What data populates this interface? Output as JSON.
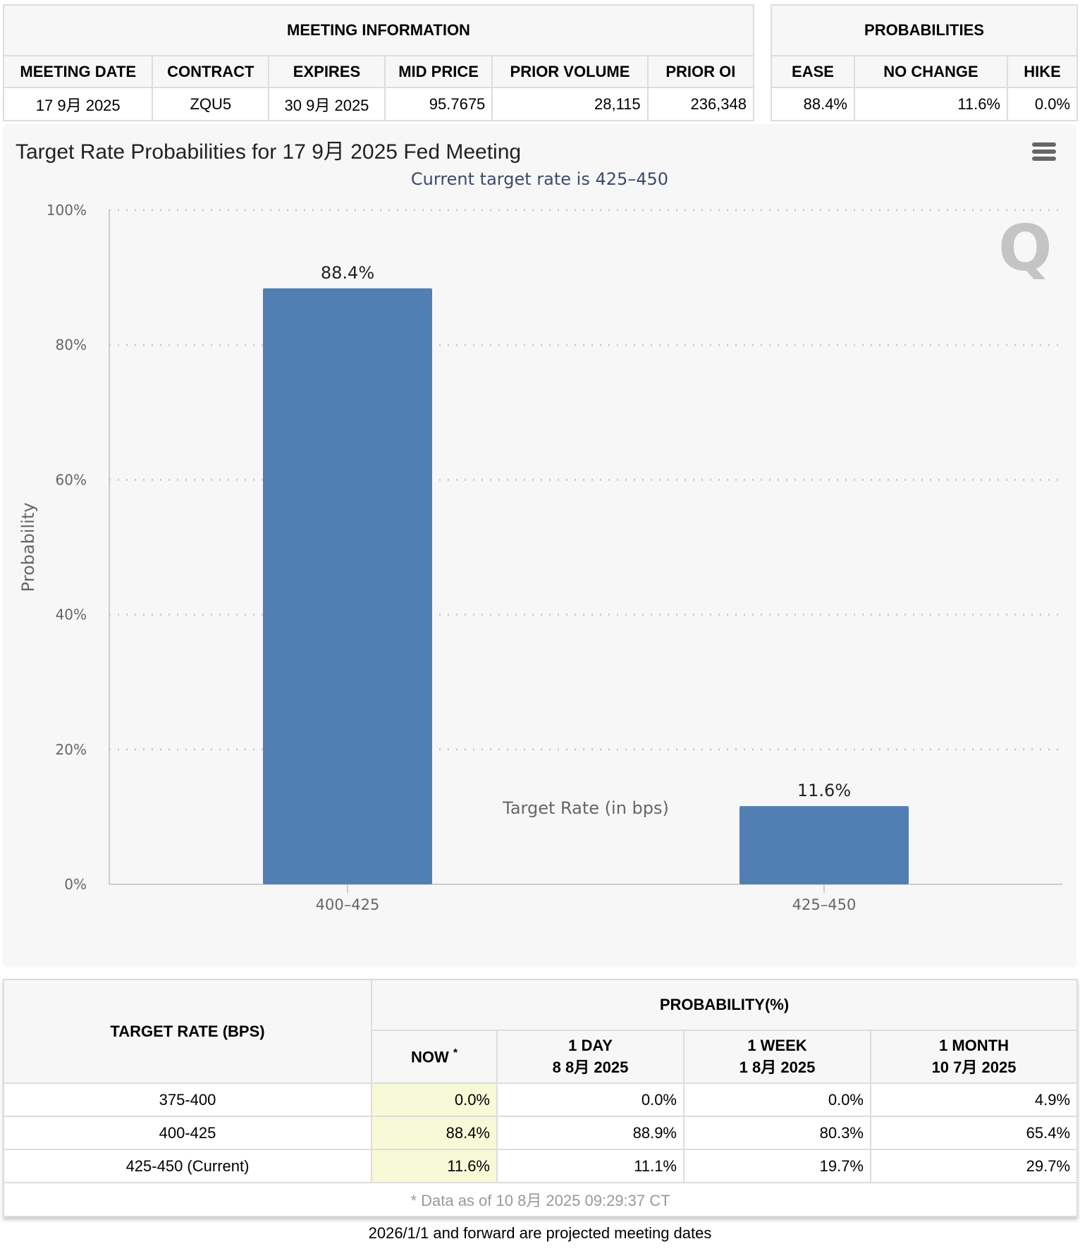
{
  "meeting_info": {
    "title": "MEETING INFORMATION",
    "headers": [
      "MEETING DATE",
      "CONTRACT",
      "EXPIRES",
      "MID PRICE",
      "PRIOR VOLUME",
      "PRIOR OI"
    ],
    "values": [
      "17 9月 2025",
      "ZQU5",
      "30 9月 2025",
      "95.7675",
      "28,115",
      "236,348"
    ]
  },
  "probabilities": {
    "title": "PROBABILITIES",
    "headers": [
      "EASE",
      "NO CHANGE",
      "HIKE"
    ],
    "values": [
      "88.4%",
      "11.6%",
      "0.0%"
    ]
  },
  "chart": {
    "title": "Target Rate Probabilities for 17 9月 2025 Fed Meeting",
    "menu_icon": "hamburger-menu-icon",
    "watermark": "Q"
  },
  "chart_data": {
    "type": "bar",
    "title": "Target Rate Probabilities for 17 9月 2025 Fed Meeting",
    "subtitle": "Current target rate is 425–450",
    "categories": [
      "400–425",
      "425–450"
    ],
    "values": [
      88.4,
      11.6
    ],
    "data_labels": [
      "88.4%",
      "11.6%"
    ],
    "xlabel": "Target Rate (in bps)",
    "ylabel": "Probability",
    "ylim": [
      0,
      100
    ],
    "yticks": [
      "0%",
      "20%",
      "40%",
      "60%",
      "80%",
      "100%"
    ],
    "grid": true,
    "bar_color": "#527fb3"
  },
  "table": {
    "rate_header": "TARGET RATE (BPS)",
    "prob_header": "PROBABILITY(%)",
    "cols": [
      {
        "l1": "NOW",
        "l2": ""
      },
      {
        "l1": "1 DAY",
        "l2": "8 8月 2025"
      },
      {
        "l1": "1 WEEK",
        "l2": "1 8月 2025"
      },
      {
        "l1": "1 MONTH",
        "l2": "10 7月 2025"
      }
    ],
    "now_mark": "*",
    "rows": [
      {
        "rate": "375-400",
        "v": [
          "0.0%",
          "0.0%",
          "0.0%",
          "4.9%"
        ]
      },
      {
        "rate": "400-425",
        "v": [
          "88.4%",
          "88.9%",
          "80.3%",
          "65.4%"
        ]
      },
      {
        "rate": "425-450 (Current)",
        "v": [
          "11.6%",
          "11.1%",
          "19.7%",
          "29.7%"
        ]
      }
    ],
    "footer": "* Data as of 10 8月 2025 09:29:37 CT"
  },
  "note": "2026/1/1 and forward are projected meeting dates"
}
